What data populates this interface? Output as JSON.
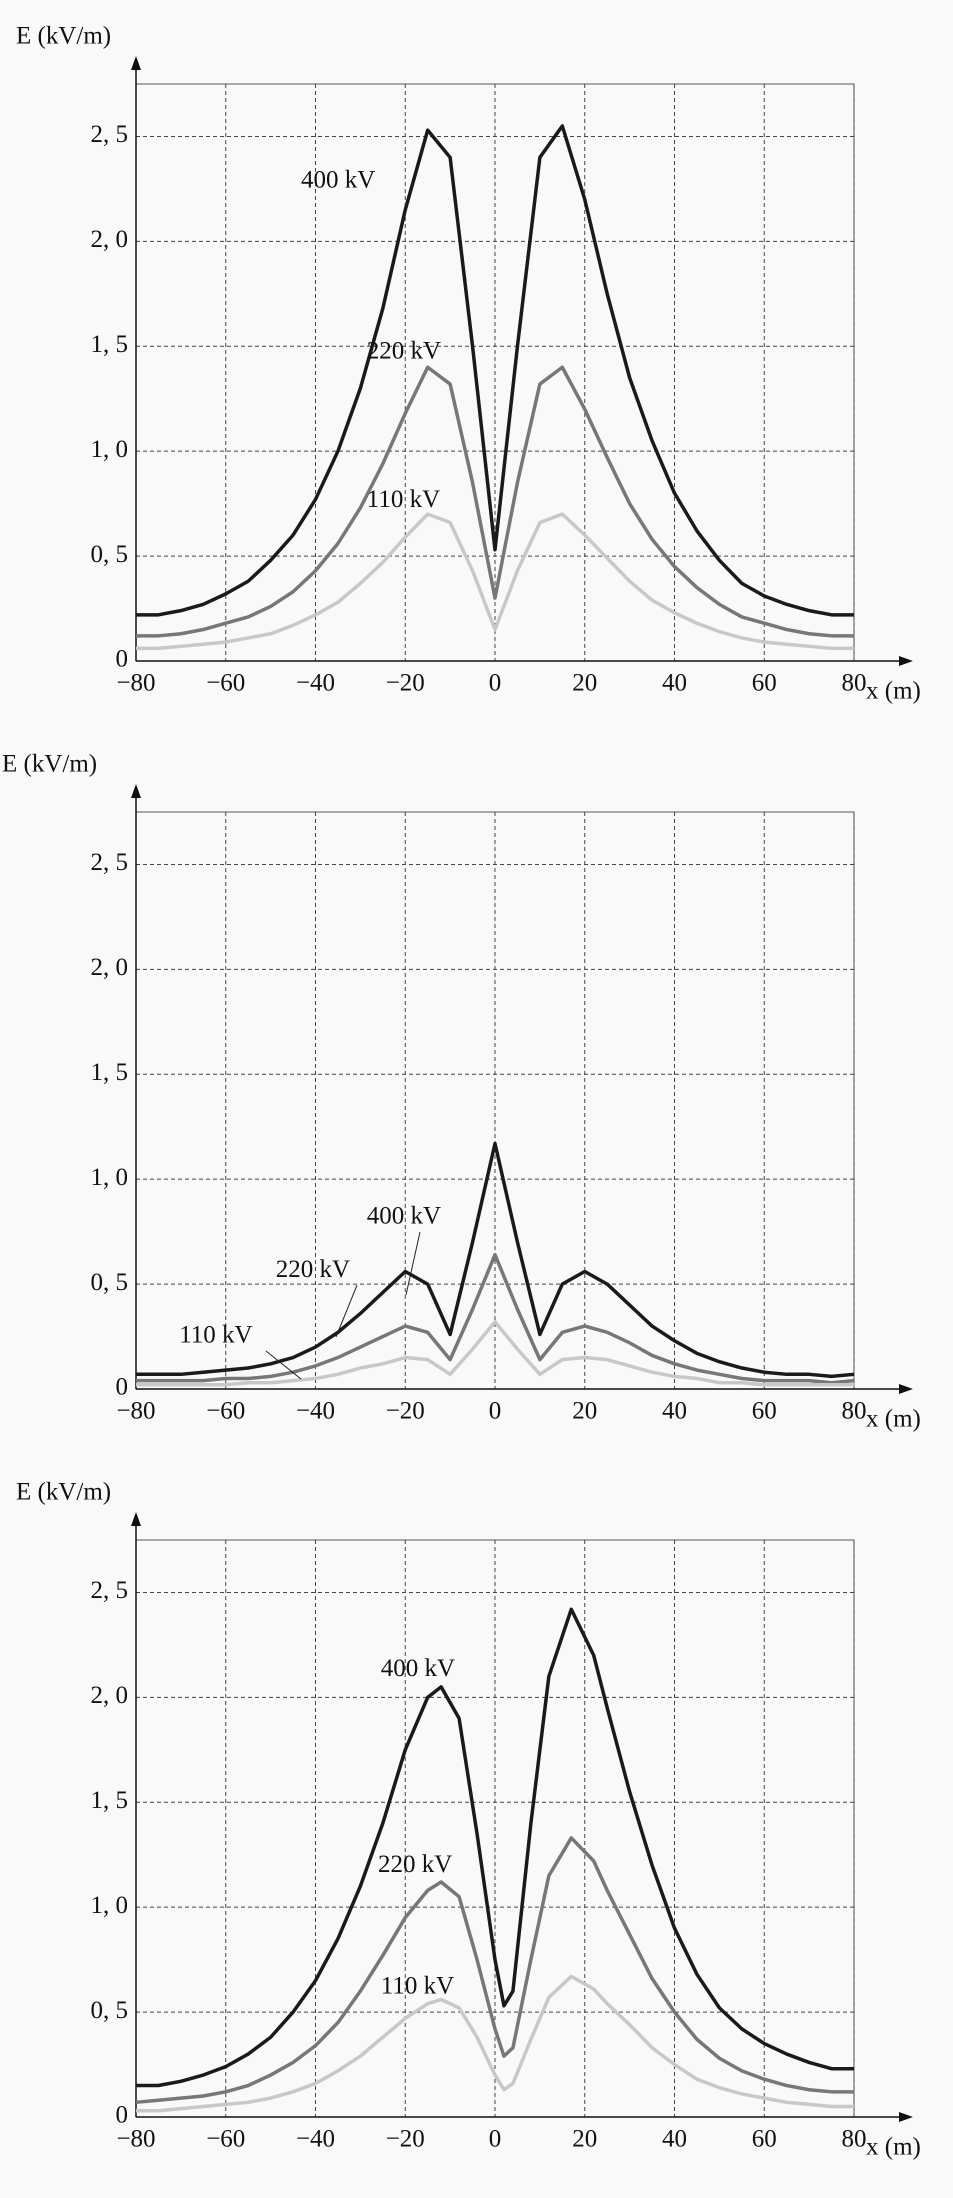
{
  "chart_data": [
    {
      "type": "line",
      "ylabel": "E (kV/m)",
      "xlabel": "x (m)",
      "grid": true,
      "xlim": [
        -80,
        80
      ],
      "ylim": [
        0,
        2.75
      ],
      "xticks": [
        {
          "value": -80,
          "label": "−80"
        },
        {
          "value": -60,
          "label": "−60"
        },
        {
          "value": -40,
          "label": "−40"
        },
        {
          "value": -20,
          "label": "−20"
        },
        0,
        20,
        40,
        60,
        80
      ],
      "yticks": [
        0,
        {
          "value": 0.5,
          "label": "0, 5"
        },
        {
          "value": 1.0,
          "label": "1, 0"
        },
        {
          "value": 1.5,
          "label": "1, 5"
        },
        {
          "value": 2.0,
          "label": "2, 0"
        },
        {
          "value": 2.5,
          "label": "2, 5"
        }
      ],
      "x": [
        -80,
        -75,
        -70,
        -65,
        -60,
        -55,
        -50,
        -45,
        -40,
        -35,
        -30,
        -25,
        -20,
        -15,
        -10,
        -5,
        0,
        5,
        10,
        15,
        20,
        25,
        30,
        35,
        40,
        45,
        50,
        55,
        60,
        65,
        70,
        75,
        80
      ],
      "series": [
        {
          "name": "400 kV",
          "color": "#1a1a1a",
          "values": [
            0.22,
            0.22,
            0.24,
            0.27,
            0.32,
            0.38,
            0.48,
            0.6,
            0.77,
            1.0,
            1.3,
            1.68,
            2.15,
            2.53,
            2.4,
            1.5,
            0.53,
            1.5,
            2.4,
            2.55,
            2.2,
            1.75,
            1.35,
            1.05,
            0.8,
            0.62,
            0.48,
            0.37,
            0.31,
            0.27,
            0.24,
            0.22,
            0.22
          ]
        },
        {
          "name": "220 kV",
          "color": "#777777",
          "values": [
            0.12,
            0.12,
            0.13,
            0.15,
            0.18,
            0.21,
            0.26,
            0.33,
            0.43,
            0.56,
            0.73,
            0.94,
            1.18,
            1.4,
            1.32,
            0.85,
            0.3,
            0.85,
            1.32,
            1.4,
            1.2,
            0.97,
            0.75,
            0.58,
            0.45,
            0.35,
            0.27,
            0.21,
            0.18,
            0.15,
            0.13,
            0.12,
            0.12
          ]
        },
        {
          "name": "110 kV",
          "color": "#c8c8c8",
          "values": [
            0.06,
            0.06,
            0.07,
            0.08,
            0.09,
            0.11,
            0.13,
            0.17,
            0.22,
            0.28,
            0.37,
            0.47,
            0.59,
            0.7,
            0.66,
            0.43,
            0.15,
            0.43,
            0.66,
            0.7,
            0.6,
            0.49,
            0.38,
            0.29,
            0.23,
            0.18,
            0.14,
            0.11,
            0.09,
            0.08,
            0.07,
            0.06,
            0.06
          ]
        }
      ]
    },
    {
      "type": "line",
      "ylabel": "E (kV/m)",
      "xlabel": "x (m)",
      "grid": true,
      "xlim": [
        -80,
        80
      ],
      "ylim": [
        0,
        2.75
      ],
      "xticks": [
        {
          "value": -80,
          "label": "−80"
        },
        {
          "value": -60,
          "label": "−60"
        },
        {
          "value": -40,
          "label": "−40"
        },
        {
          "value": -20,
          "label": "−20"
        },
        0,
        20,
        40,
        60,
        80
      ],
      "yticks": [
        0,
        {
          "value": 0.5,
          "label": "0, 5"
        },
        {
          "value": 1.0,
          "label": "1, 0"
        },
        {
          "value": 1.5,
          "label": "1, 5"
        },
        {
          "value": 2.0,
          "label": "2, 0"
        },
        {
          "value": 2.5,
          "label": "2, 5"
        }
      ],
      "x": [
        -80,
        -75,
        -70,
        -65,
        -60,
        -55,
        -50,
        -45,
        -40,
        -35,
        -30,
        -25,
        -20,
        -15,
        -10,
        -5,
        0,
        5,
        10,
        15,
        20,
        25,
        30,
        35,
        40,
        45,
        50,
        55,
        60,
        65,
        70,
        75,
        80
      ],
      "series": [
        {
          "name": "400 kV",
          "color": "#1a1a1a",
          "values": [
            0.07,
            0.07,
            0.07,
            0.08,
            0.09,
            0.1,
            0.12,
            0.15,
            0.2,
            0.27,
            0.36,
            0.46,
            0.56,
            0.5,
            0.26,
            0.7,
            1.17,
            0.7,
            0.26,
            0.5,
            0.56,
            0.5,
            0.4,
            0.3,
            0.23,
            0.17,
            0.13,
            0.1,
            0.08,
            0.07,
            0.07,
            0.06,
            0.07
          ]
        },
        {
          "name": "220 kV",
          "color": "#777777",
          "values": [
            0.04,
            0.04,
            0.04,
            0.04,
            0.05,
            0.05,
            0.06,
            0.08,
            0.11,
            0.15,
            0.2,
            0.25,
            0.3,
            0.27,
            0.14,
            0.38,
            0.64,
            0.38,
            0.14,
            0.27,
            0.3,
            0.27,
            0.22,
            0.16,
            0.12,
            0.09,
            0.07,
            0.05,
            0.04,
            0.04,
            0.04,
            0.03,
            0.04
          ]
        },
        {
          "name": "110 kV",
          "color": "#c8c8c8",
          "values": [
            0.02,
            0.02,
            0.02,
            0.02,
            0.02,
            0.03,
            0.03,
            0.04,
            0.05,
            0.07,
            0.1,
            0.12,
            0.15,
            0.14,
            0.07,
            0.19,
            0.32,
            0.19,
            0.07,
            0.14,
            0.15,
            0.14,
            0.11,
            0.08,
            0.06,
            0.05,
            0.03,
            0.03,
            0.02,
            0.02,
            0.02,
            0.02,
            0.02
          ]
        }
      ]
    },
    {
      "type": "line",
      "ylabel": "E (kV/m)",
      "xlabel": "x (m)",
      "grid": true,
      "xlim": [
        -80,
        80
      ],
      "ylim": [
        0,
        2.75
      ],
      "xticks": [
        {
          "value": -80,
          "label": "−80"
        },
        {
          "value": -60,
          "label": "−60"
        },
        {
          "value": -40,
          "label": "−40"
        },
        {
          "value": -20,
          "label": "−20"
        },
        0,
        20,
        40,
        60,
        80
      ],
      "yticks": [
        0,
        {
          "value": 0.5,
          "label": "0, 5"
        },
        {
          "value": 1.0,
          "label": "1, 0"
        },
        {
          "value": 1.5,
          "label": "1, 5"
        },
        {
          "value": 2.0,
          "label": "2, 0"
        },
        {
          "value": 2.5,
          "label": "2, 5"
        }
      ],
      "x": [
        -80,
        -75,
        -70,
        -65,
        -60,
        -55,
        -50,
        -45,
        -40,
        -35,
        -30,
        -25,
        -20,
        -15,
        -12,
        -8,
        -4,
        0,
        2,
        4,
        8,
        12,
        17,
        22,
        25,
        30,
        35,
        40,
        45,
        50,
        55,
        60,
        65,
        70,
        75,
        80
      ],
      "series": [
        {
          "name": "400 kV",
          "color": "#1a1a1a",
          "values": [
            0.15,
            0.15,
            0.17,
            0.2,
            0.24,
            0.3,
            0.38,
            0.5,
            0.65,
            0.85,
            1.1,
            1.4,
            1.75,
            2.0,
            2.05,
            1.9,
            1.35,
            0.75,
            0.53,
            0.6,
            1.4,
            2.1,
            2.42,
            2.2,
            1.95,
            1.55,
            1.2,
            0.9,
            0.68,
            0.52,
            0.42,
            0.35,
            0.3,
            0.26,
            0.23,
            0.23
          ]
        },
        {
          "name": "220 kV",
          "color": "#777777",
          "values": [
            0.07,
            0.08,
            0.09,
            0.1,
            0.12,
            0.15,
            0.2,
            0.26,
            0.34,
            0.45,
            0.6,
            0.77,
            0.95,
            1.08,
            1.12,
            1.05,
            0.75,
            0.42,
            0.29,
            0.33,
            0.75,
            1.15,
            1.33,
            1.22,
            1.08,
            0.87,
            0.66,
            0.5,
            0.37,
            0.28,
            0.22,
            0.18,
            0.15,
            0.13,
            0.12,
            0.12
          ]
        },
        {
          "name": "110 kV",
          "color": "#c8c8c8",
          "values": [
            0.03,
            0.03,
            0.04,
            0.05,
            0.06,
            0.07,
            0.09,
            0.12,
            0.16,
            0.22,
            0.29,
            0.38,
            0.47,
            0.54,
            0.56,
            0.52,
            0.38,
            0.2,
            0.13,
            0.16,
            0.37,
            0.57,
            0.67,
            0.61,
            0.54,
            0.44,
            0.33,
            0.25,
            0.18,
            0.14,
            0.11,
            0.09,
            0.07,
            0.06,
            0.05,
            0.05
          ]
        }
      ]
    }
  ]
}
